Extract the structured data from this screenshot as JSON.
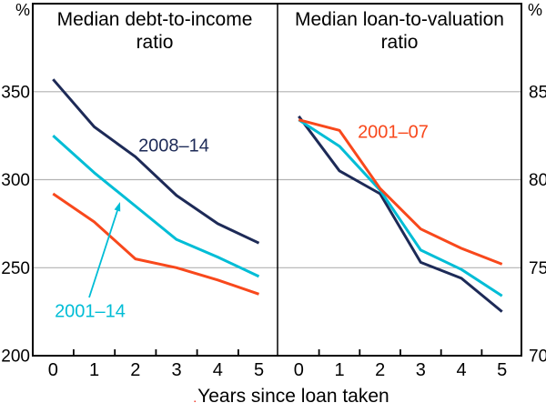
{
  "labels": {
    "xlabel": "Years since loan taken",
    "footnote_mark": ".",
    "left_unit": "%",
    "right_unit": "%",
    "series_label_navy": "2008–14",
    "series_label_cyan": "2001–14",
    "series_label_orange": "2001–07"
  },
  "colors": {
    "navy": "#1D2A57",
    "cyan": "#00BDD6",
    "orange": "#F8481C",
    "grid": "#B2B2B2",
    "axis": "#000000",
    "background": "#FFFFFF",
    "footnote": "#EE2211"
  },
  "chart_data": [
    {
      "type": "line",
      "panel": "left",
      "title": "Median debt-to-income ratio",
      "unit": "%",
      "x": [
        0,
        1,
        2,
        3,
        4,
        5
      ],
      "x_tick_labels": [
        "0",
        "1",
        "2",
        "3",
        "4",
        "5"
      ],
      "ylim": [
        200,
        400
      ],
      "yticks_shown": [
        350,
        300,
        250,
        200
      ],
      "grid": "horizontal",
      "legend_style": "inline-labels",
      "series": [
        {
          "name": "2008–14",
          "color_key": "navy",
          "values": [
            357,
            330,
            313,
            291,
            275,
            264
          ]
        },
        {
          "name": "2001–14",
          "color_key": "cyan",
          "values": [
            325,
            304,
            285,
            266,
            256,
            245
          ]
        },
        {
          "name": "2001–07",
          "color_key": "orange",
          "values": [
            292,
            276,
            255,
            250,
            243,
            235
          ]
        }
      ]
    },
    {
      "type": "line",
      "panel": "right",
      "title": "Median loan-to-valuation ratio",
      "unit": "%",
      "x": [
        0,
        1,
        2,
        3,
        4,
        5
      ],
      "x_tick_labels": [
        "0",
        "1",
        "2",
        "3",
        "4",
        "5"
      ],
      "ylim": [
        70,
        90
      ],
      "yticks_shown": [
        85,
        80,
        75,
        70
      ],
      "grid": "horizontal",
      "legend_style": "inline-labels",
      "series": [
        {
          "name": "2008–14",
          "color_key": "navy",
          "values": [
            83.6,
            80.5,
            79.2,
            75.3,
            74.4,
            72.5
          ]
        },
        {
          "name": "2001–14",
          "color_key": "cyan",
          "values": [
            83.4,
            81.9,
            79.4,
            76.0,
            74.9,
            73.4
          ]
        },
        {
          "name": "2001–07",
          "color_key": "orange",
          "values": [
            83.4,
            82.8,
            79.5,
            77.2,
            76.1,
            75.2
          ]
        }
      ]
    }
  ]
}
